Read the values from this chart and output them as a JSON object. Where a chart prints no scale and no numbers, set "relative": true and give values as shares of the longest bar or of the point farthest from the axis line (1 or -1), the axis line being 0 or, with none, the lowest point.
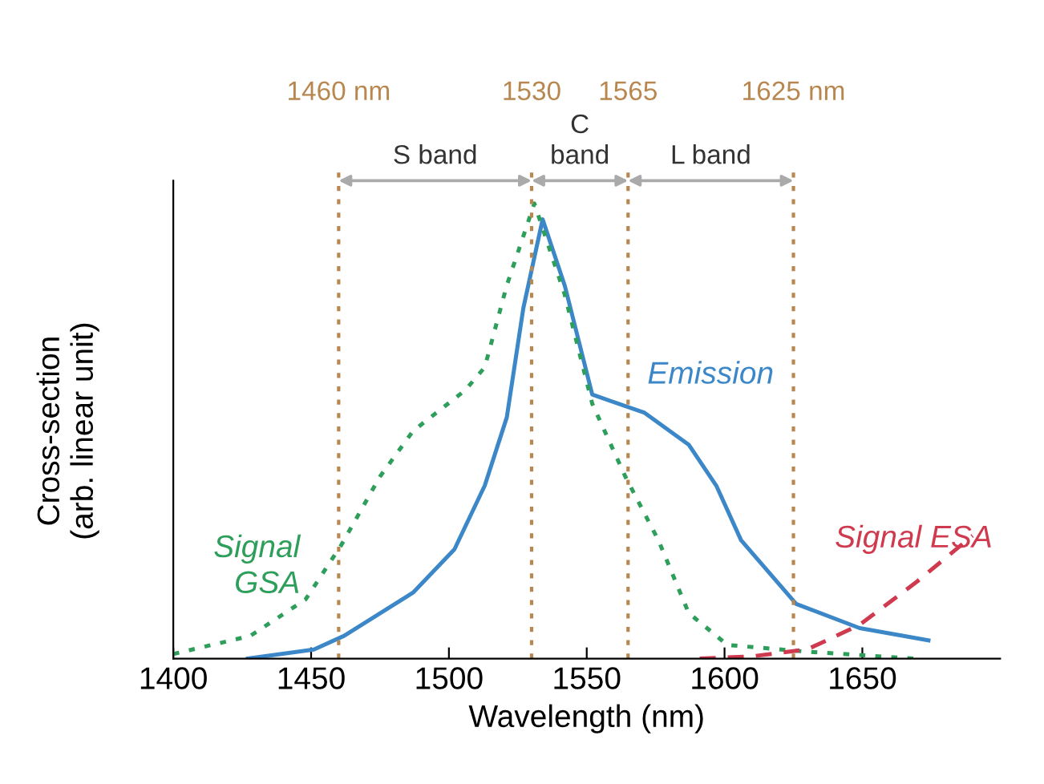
{
  "chart_data": {
    "type": "line",
    "relative": true,
    "xlabel": "Wavelength (nm)",
    "ylabel": "Cross-section\n(arb. linear unit)",
    "xlim": [
      1400,
      1700
    ],
    "xticks": [
      1400,
      1450,
      1500,
      1550,
      1600,
      1650
    ],
    "grid": false,
    "legend": false,
    "marker": "none",
    "series": [
      {
        "name": "Emission",
        "color": "#3b87c8",
        "line_style": "solid",
        "x": [
          1427,
          1451,
          1462,
          1487,
          1502,
          1513,
          1521,
          1527,
          1534,
          1542,
          1552,
          1571,
          1587,
          1597,
          1606,
          1626,
          1649,
          1674
        ],
        "values": [
          0.0,
          0.02,
          0.05,
          0.145,
          0.24,
          0.38,
          0.53,
          0.77,
          0.965,
          0.82,
          0.58,
          0.54,
          0.47,
          0.38,
          0.26,
          0.12,
          0.067,
          0.04
        ]
      },
      {
        "name": "Signal\nGSA",
        "color": "#2e9e5b",
        "line_style": "dotted",
        "x": [
          1400,
          1428,
          1448,
          1461,
          1475,
          1487,
          1506,
          1513,
          1521,
          1531,
          1542,
          1552,
          1564,
          1576,
          1587,
          1601,
          1630,
          1669
        ],
        "values": [
          0.01,
          0.05,
          0.13,
          0.25,
          0.4,
          0.5,
          0.59,
          0.64,
          0.82,
          1.0,
          0.8,
          0.56,
          0.4,
          0.26,
          0.1,
          0.03,
          0.015,
          0.0
        ]
      },
      {
        "name": "Signal ESA",
        "color": "#d03a4e",
        "line_style": "dashed",
        "x": [
          1591,
          1610,
          1630,
          1649,
          1670,
          1690
        ],
        "values": [
          0.0,
          0.005,
          0.02,
          0.074,
          0.17,
          0.27
        ]
      }
    ],
    "ref_lines": [
      {
        "axis": "x",
        "value": 1460,
        "label": "1460 nm",
        "color": "#b8874f",
        "line_style": "dotted"
      },
      {
        "axis": "x",
        "value": 1530,
        "label": "1530",
        "color": "#b8874f",
        "line_style": "dotted"
      },
      {
        "axis": "x",
        "value": 1565,
        "label": "1565",
        "color": "#b8874f",
        "line_style": "dotted"
      },
      {
        "axis": "x",
        "value": 1625,
        "label": "1625 nm",
        "color": "#b8874f",
        "line_style": "dotted"
      }
    ],
    "annotations": [
      "S band",
      "C\nband",
      "L band"
    ]
  }
}
